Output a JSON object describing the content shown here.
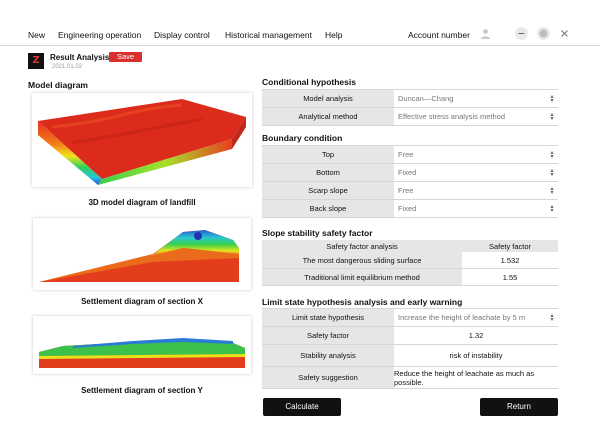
{
  "menu": {
    "items": [
      "New",
      "Engineering operation",
      "Display control",
      "Historical management",
      "Help"
    ],
    "account_label": "Account number"
  },
  "app": {
    "logo_text": "Z",
    "title": "Result Analysis",
    "save_label": "Save",
    "date": "2021.01.02"
  },
  "left": {
    "heading": "Model diagram",
    "captions": {
      "model3d": "3D model  diagram of landfill",
      "section_x": "Settlement diagram of section X",
      "section_y": "Settlement diagram of section Y"
    }
  },
  "conditional": {
    "heading": "Conditional hypothesis",
    "rows": [
      {
        "label": "Model analysis",
        "value": "Duncan—Chang"
      },
      {
        "label": "Analytical method",
        "value": "Effective stress analysis method"
      }
    ]
  },
  "boundary": {
    "heading": "Boundary condition",
    "rows": [
      {
        "label": "Top",
        "value": "Free"
      },
      {
        "label": "Bottom",
        "value": "Fixed"
      },
      {
        "label": "Scarp slope",
        "value": "Free"
      },
      {
        "label": "Back slope",
        "value": "Fixed"
      }
    ]
  },
  "safety": {
    "heading": "Slope stability safety factor",
    "col1": "Safety factor analysis",
    "col2": "Safety factor",
    "rows": [
      {
        "label": "The most dangerous sliding surface",
        "value": "1.532"
      },
      {
        "label": "Traditional limit equilibrium method",
        "value": "1.55"
      }
    ]
  },
  "limit": {
    "heading": "Limit state hypothesis analysis and early warning",
    "hypothesis_label": "Limit state hypothesis",
    "hypothesis_value": "Increase the height of leachate by 5 m",
    "factor_label": "Safety factor",
    "factor_value": "1.32",
    "stability_label": "Stability analysis",
    "stability_value": "risk of instability",
    "suggestion_label": "Safety suggestion",
    "suggestion_value": "Reduce the height of leachate as much as possible."
  },
  "actions": {
    "calculate": "Calculate",
    "return": "Return"
  },
  "colors": {
    "accent": "#d9302f",
    "button": "#111111",
    "label_bg": "#e6e6e6"
  }
}
